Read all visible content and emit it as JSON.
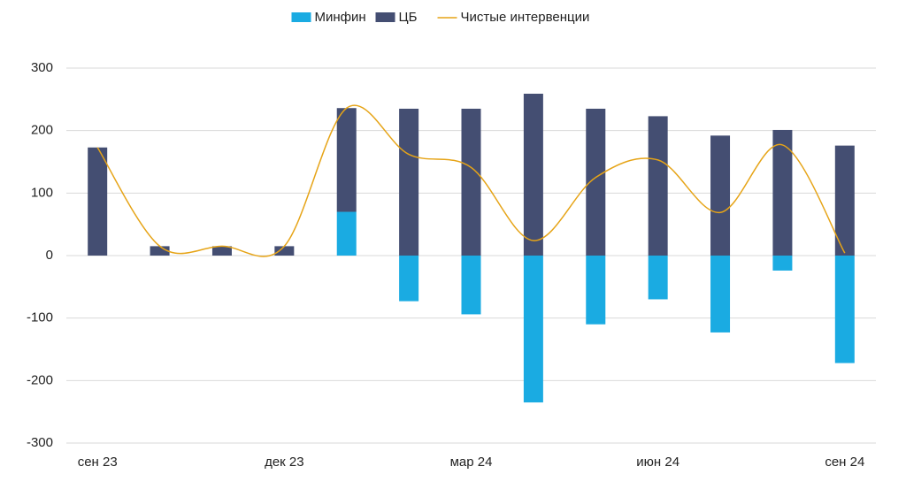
{
  "chart_data": {
    "type": "bar_line",
    "categories": [
      "сен 23",
      null,
      null,
      "дек 23",
      null,
      null,
      "мар 24",
      null,
      null,
      "июн 24",
      null,
      null,
      "сен 24"
    ],
    "series": [
      {
        "name": "Минфин",
        "type": "bar",
        "color": "#1aabe2",
        "values": [
          0,
          0,
          0,
          0,
          70,
          -73,
          -94,
          -235,
          -110,
          -70,
          -123,
          -24,
          -172
        ]
      },
      {
        "name": "ЦБ",
        "type": "bar",
        "color": "#444e72",
        "values": [
          173,
          15,
          15,
          15,
          166,
          235,
          235,
          259,
          235,
          223,
          192,
          201,
          176
        ]
      },
      {
        "name": "Чистые интервенции",
        "type": "line",
        "color": "#e6a417",
        "values": [
          173,
          15,
          15,
          15,
          236,
          162,
          141,
          24,
          125,
          153,
          69,
          177,
          4
        ]
      }
    ],
    "ylim": [
      -300,
      300
    ],
    "yticks": [
      -300,
      -200,
      -100,
      0,
      100,
      200,
      300
    ],
    "grid": true
  }
}
